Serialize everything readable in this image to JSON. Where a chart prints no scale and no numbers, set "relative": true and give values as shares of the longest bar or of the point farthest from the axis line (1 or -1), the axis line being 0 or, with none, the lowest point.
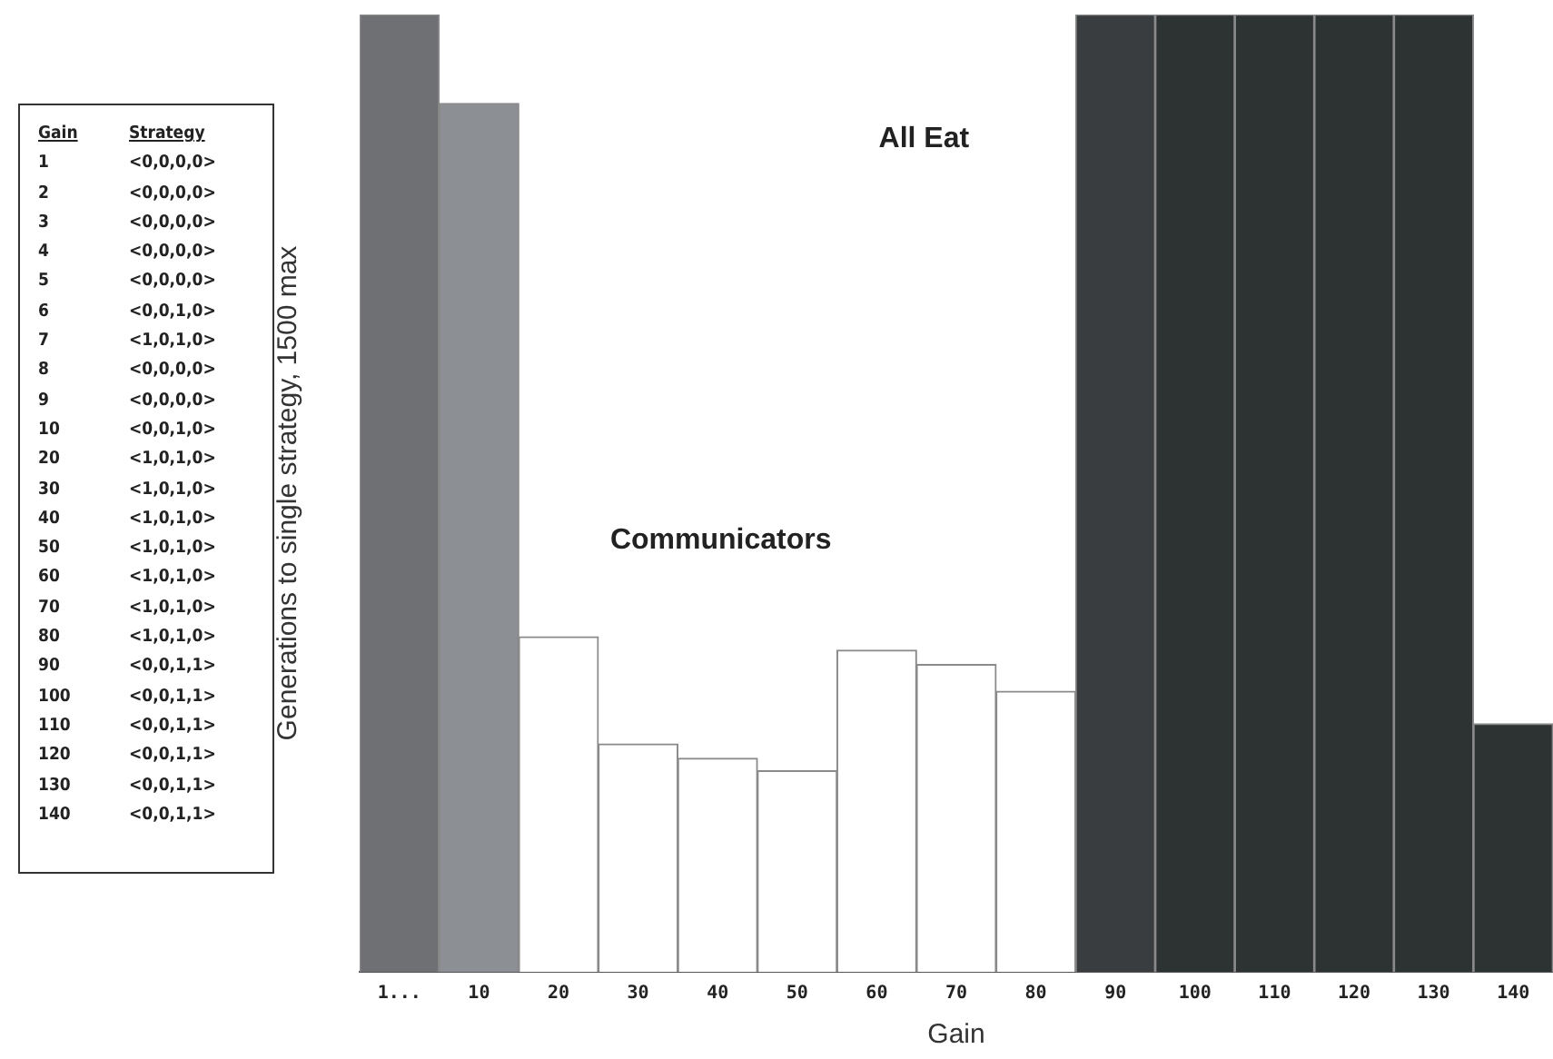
{
  "chart_data": {
    "type": "bar",
    "relative": true,
    "xlabel": "Gain",
    "ylabel": "Generations to single strategy, 1500 max",
    "categories": [
      "1...",
      "10",
      "20",
      "30",
      "40",
      "50",
      "60",
      "70",
      "80",
      "90",
      "100",
      "110",
      "120",
      "130",
      "140"
    ],
    "values": [
      1,
      0.907,
      0.35,
      0.238,
      0.223,
      0.21,
      0.336,
      0.321,
      0.293,
      1,
      1,
      1,
      1,
      1,
      0.259
    ],
    "colors": [
      "#6e7073",
      "#8c8f94",
      "#ffffff",
      "#ffffff",
      "#ffffff",
      "#ffffff",
      "#ffffff",
      "#ffffff",
      "#ffffff",
      "#3a3d3f",
      "#2d3233",
      "#2d3233",
      "#2d3233",
      "#2d3233",
      "#2d3233"
    ],
    "annotations": [
      "All Eat",
      "Communicators",
      "Gain",
      "Strategy",
      "1",
      "<0,0,0,0>",
      "2",
      "<0,0,0,0>",
      "3",
      "<0,0,0,0>",
      "4",
      "<0,0,0,0>",
      "5",
      "<0,0,0,0>",
      "6",
      "<0,0,1,0>",
      "7",
      "<1,0,1,0>",
      "8",
      "<0,0,0,0>",
      "9",
      "<0,0,0,0>",
      "10",
      "<0,0,1,0>",
      "20",
      "<1,0,1,0>",
      "30",
      "<1,0,1,0>",
      "40",
      "<1,0,1,0>",
      "50",
      "<1,0,1,0>",
      "60",
      "<1,0,1,0>",
      "70",
      "<1,0,1,0>",
      "80",
      "<1,0,1,0>",
      "90",
      "<0,0,1,1>",
      "100",
      "<0,0,1,1>",
      "110",
      "<0,0,1,1>",
      "120",
      "<0,0,1,1>",
      "130",
      "<0,0,1,1>",
      "140",
      "<0,0,1,1>"
    ],
    "grid": false,
    "legend": false
  }
}
